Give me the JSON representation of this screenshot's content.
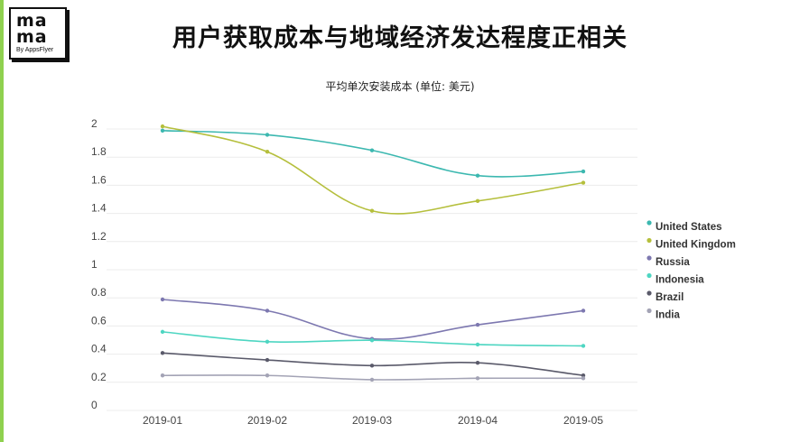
{
  "header": {
    "title": "用户获取成本与地域经济发达程度正相关",
    "logo": {
      "line1": "ma",
      "line2": "ma",
      "by": "By AppsFlyer"
    }
  },
  "chart_data": {
    "type": "line",
    "title": "平均单次安装成本 (单位: 美元)",
    "xlabel": "",
    "ylabel": "",
    "categories": [
      "2019-01",
      "2019-02",
      "2019-03",
      "2019-04",
      "2019-05"
    ],
    "yticks": [
      "0",
      "0.2",
      "0.4",
      "0.6",
      "0.8",
      "1",
      "1.2",
      "1.4",
      "1.6",
      "1.8",
      "2"
    ],
    "ylim": [
      0,
      2
    ],
    "grid": true,
    "legend_position": "right",
    "series": [
      {
        "name": "United States",
        "color": "#3cb8b0",
        "values": [
          1.95,
          1.92,
          1.81,
          1.63,
          1.66
        ]
      },
      {
        "name": "United Kingdom",
        "color": "#b5bf3c",
        "values": [
          1.98,
          1.8,
          1.38,
          1.45,
          1.58
        ]
      },
      {
        "name": "Russia",
        "color": "#7d78b0",
        "values": [
          0.75,
          0.67,
          0.47,
          0.57,
          0.67
        ]
      },
      {
        "name": "Indonesia",
        "color": "#4ed6c2",
        "values": [
          0.52,
          0.45,
          0.46,
          0.43,
          0.42
        ]
      },
      {
        "name": "Brazil",
        "color": "#5a5a6a",
        "values": [
          0.37,
          0.32,
          0.28,
          0.3,
          0.21
        ]
      },
      {
        "name": "India",
        "color": "#a3a3b5",
        "values": [
          0.21,
          0.21,
          0.18,
          0.19,
          0.19
        ]
      }
    ]
  }
}
